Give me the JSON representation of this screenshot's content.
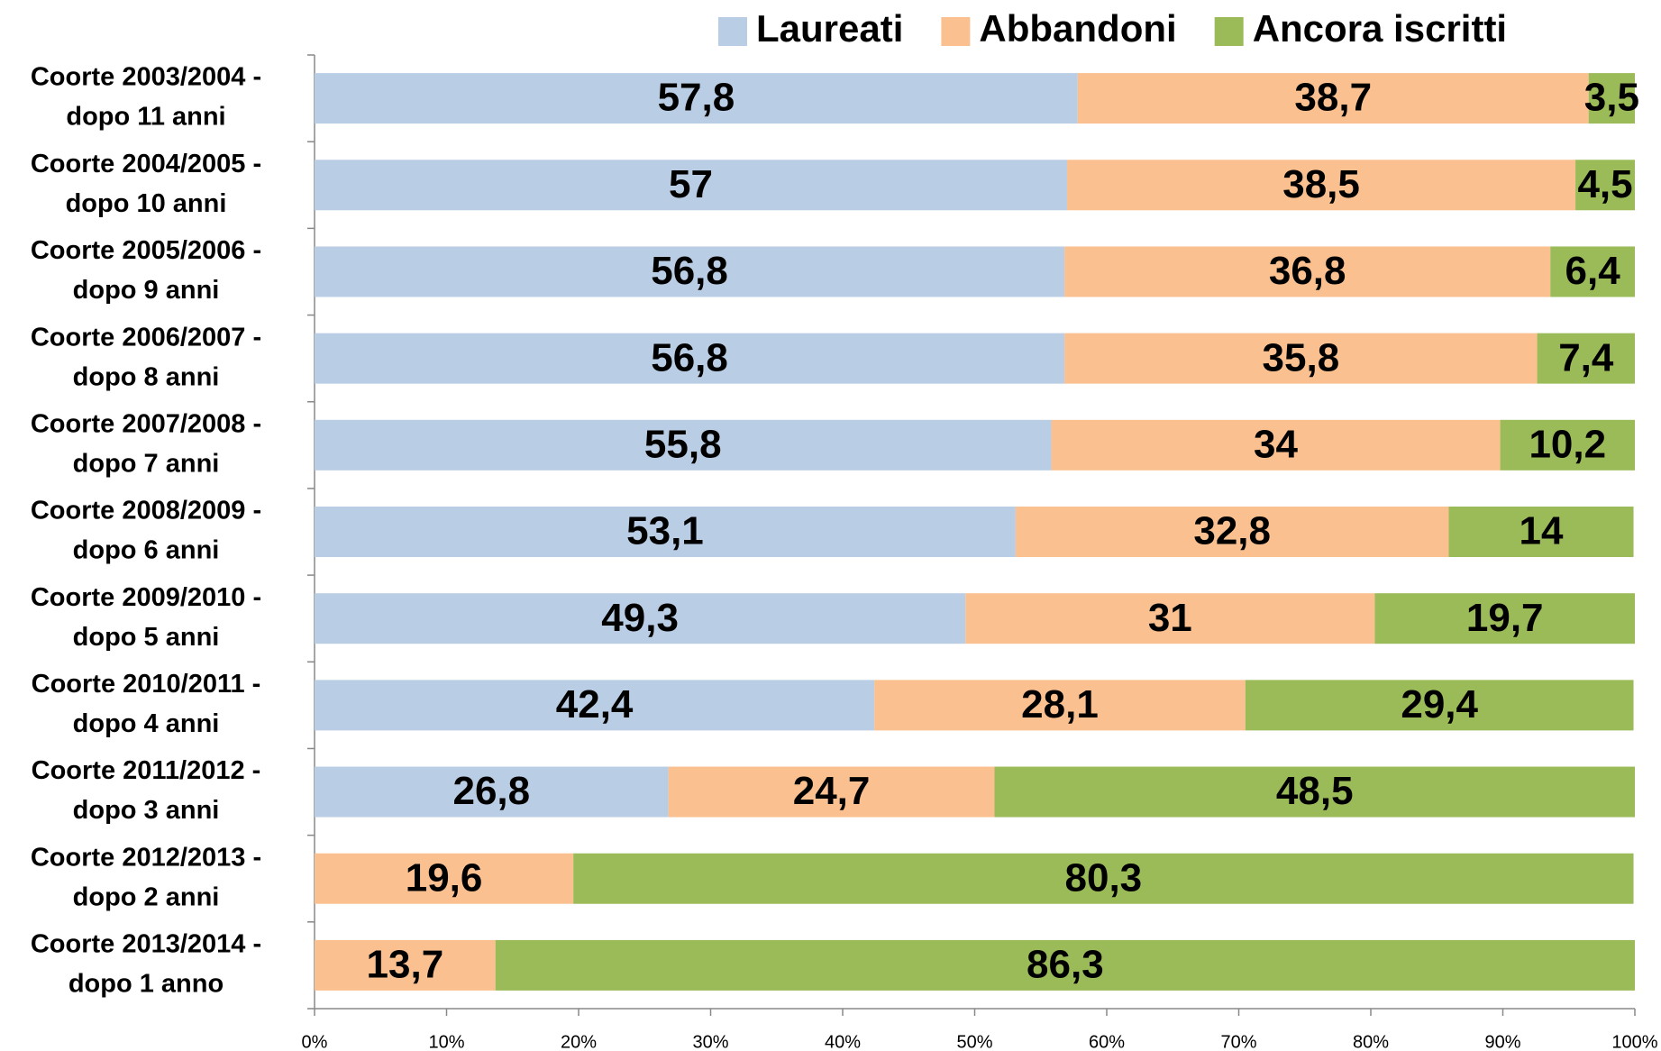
{
  "chart_data": {
    "type": "stacked_barh",
    "categories": [
      [
        "Coorte 2003/2004 -",
        "dopo 11 anni"
      ],
      [
        "Coorte 2004/2005 -",
        "dopo 10 anni"
      ],
      [
        "Coorte 2005/2006 -",
        "dopo 9 anni"
      ],
      [
        "Coorte 2006/2007 -",
        "dopo 8 anni"
      ],
      [
        "Coorte 2007/2008 -",
        "dopo 7 anni"
      ],
      [
        "Coorte 2008/2009 -",
        "dopo 6 anni"
      ],
      [
        "Coorte 2009/2010 -",
        "dopo 5 anni"
      ],
      [
        "Coorte 2010/2011 -",
        "dopo 4 anni"
      ],
      [
        "Coorte 2011/2012 -",
        "dopo 3 anni"
      ],
      [
        "Coorte 2012/2013 -",
        "dopo 2 anni"
      ],
      [
        "Coorte 2013/2014 -",
        "dopo 1 anno"
      ]
    ],
    "series": [
      {
        "name": "Laureati",
        "color": "#b9cde5",
        "values": [
          57.8,
          57,
          56.8,
          56.8,
          55.8,
          53.1,
          49.3,
          42.4,
          26.8,
          null,
          null
        ],
        "value_labels": [
          "57,8",
          "57",
          "56,8",
          "56,8",
          "55,8",
          "53,1",
          "49,3",
          "42,4",
          "26,8",
          null,
          null
        ]
      },
      {
        "name": "Abbandoni",
        "color": "#fac090",
        "values": [
          38.7,
          38.5,
          36.8,
          35.8,
          34,
          32.8,
          31,
          28.1,
          24.7,
          19.6,
          13.7
        ],
        "value_labels": [
          "38,7",
          "38,5",
          "36,8",
          "35,8",
          "34",
          "32,8",
          "31",
          "28,1",
          "24,7",
          "19,6",
          "13,7"
        ]
      },
      {
        "name": "Ancora iscritti",
        "color": "#9bbb59",
        "values": [
          3.5,
          4.5,
          6.4,
          7.4,
          10.2,
          14,
          19.7,
          29.4,
          48.5,
          80.3,
          86.3
        ],
        "value_labels": [
          "3,5",
          "4,5",
          "6,4",
          "7,4",
          "10,2",
          "14",
          "19,7",
          "29,4",
          "48,5",
          "80,3",
          "86,3"
        ]
      }
    ],
    "xlim": [
      0,
      100
    ],
    "xticks": [
      {
        "value": 0,
        "label": "0%"
      },
      {
        "value": 10,
        "label": "10%"
      },
      {
        "value": 20,
        "label": "20%"
      },
      {
        "value": 30,
        "label": "30%"
      },
      {
        "value": 40,
        "label": "40%"
      },
      {
        "value": 50,
        "label": "50%"
      },
      {
        "value": 60,
        "label": "60%"
      },
      {
        "value": 70,
        "label": "70%"
      },
      {
        "value": 80,
        "label": "80%"
      },
      {
        "value": 90,
        "label": "90%"
      },
      {
        "value": 100,
        "label": "100%"
      }
    ],
    "legend": "top"
  }
}
